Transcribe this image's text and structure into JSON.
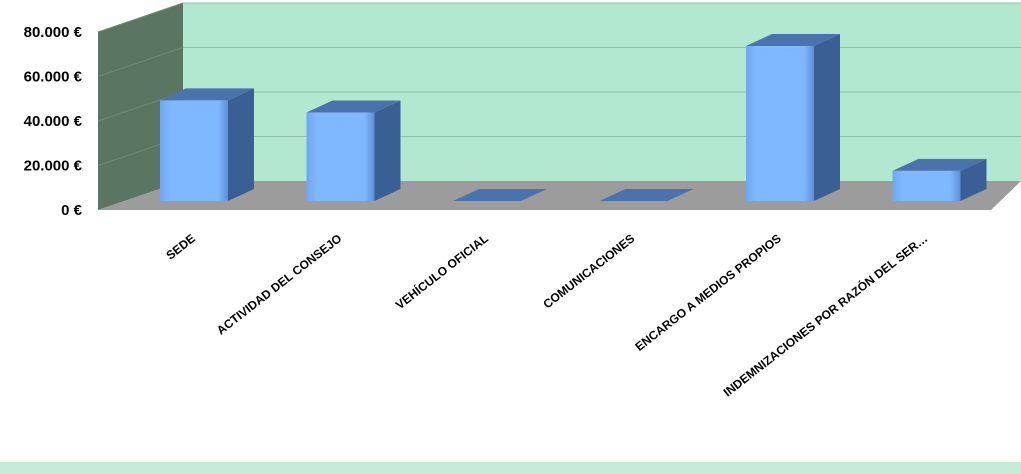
{
  "chart_data": {
    "type": "bar",
    "title": "",
    "xlabel": "",
    "ylabel": "",
    "categories": [
      "SEDE",
      "ACTIVIDAD DEL CONSEJO",
      "VEHÍCULO OFICIAL",
      "COMUNICACIONES",
      "ENCARGO A MEDIOS PROPIOS",
      "INDEMNIZACIONES POR RAZÓN DEL SER…"
    ],
    "values": [
      50000,
      44000,
      0,
      0,
      77000,
      15000
    ],
    "ylim": [
      0,
      80000
    ],
    "yticks": [
      0,
      20000,
      40000,
      60000,
      80000
    ],
    "ytick_labels": [
      "0 €",
      "20.000 €",
      "40.000 €",
      "60.000 €",
      "80.000 €"
    ],
    "grid": true,
    "legend": "none",
    "colors": {
      "bar_front": "#80b8ff",
      "bar_side": "#3a5f95",
      "bar_top": "#4a72ad",
      "back_wall": "#b2e8cf",
      "side_wall": "#5a7562",
      "floor": "#9c9c9c",
      "gridline": "#8fbfa5"
    }
  }
}
